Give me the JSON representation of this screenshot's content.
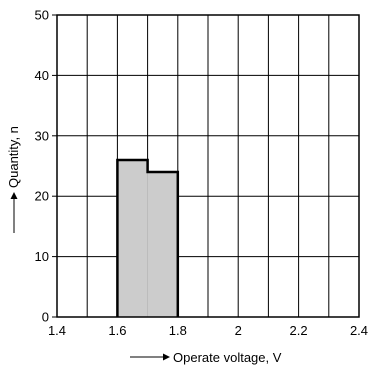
{
  "chart_data": {
    "type": "bar",
    "x": [
      1.6,
      1.7
    ],
    "bin_width": 0.1,
    "values": [
      26,
      24
    ],
    "xlabel": "Operate voltage, V",
    "ylabel": "Quantity, n",
    "xlim": [
      1.4,
      2.4
    ],
    "ylim": [
      0,
      50
    ],
    "x_ticks": [
      "1.4",
      "1.6",
      "1.8",
      "2",
      "2.2",
      "2.4"
    ],
    "y_ticks": [
      "0",
      "10",
      "20",
      "30",
      "40",
      "50"
    ],
    "grid": true,
    "bar_fill": "#cccccc",
    "bar_edge": "#000000",
    "grid_color": "#000000"
  }
}
